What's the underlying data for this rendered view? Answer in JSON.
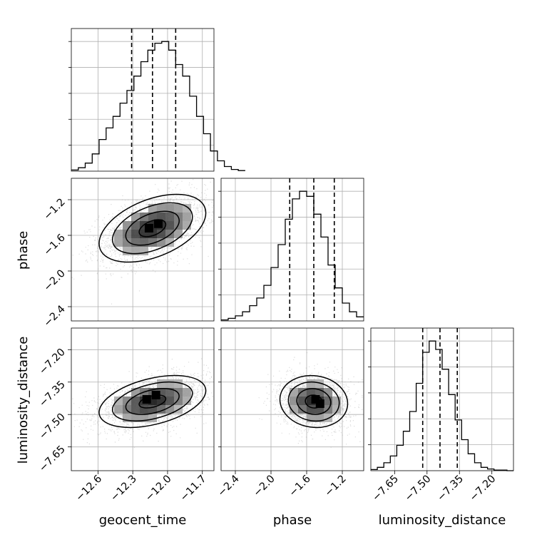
{
  "chart_data": {
    "type": "corner",
    "grid": true,
    "parameters": [
      {
        "name": "geocent_time",
        "label": "geocent_time",
        "lim": [
          -12.83,
          -11.6
        ],
        "ticks": [
          -12.6,
          -12.3,
          -12.0,
          -11.7
        ],
        "tick_labels": [
          "−12.6",
          "−12.3",
          "−12.0",
          "−11.7"
        ],
        "quantiles": [
          -12.31,
          -12.13,
          -11.93
        ],
        "hist": {
          "edges_start": -12.83,
          "bin_width": 0.06,
          "counts": [
            2,
            6,
            14,
            30,
            55,
            75,
            95,
            118,
            140,
            165,
            190,
            210,
            222,
            225,
            210,
            185,
            165,
            130,
            95,
            65,
            35,
            18,
            8,
            3,
            1
          ]
        }
      },
      {
        "name": "phase",
        "label": "phase",
        "lim": [
          -2.56,
          -0.96
        ],
        "ticks": [
          -2.4,
          -2.0,
          -1.6,
          -1.2
        ],
        "tick_labels": [
          "−2.4",
          "−2.0",
          "−1.6",
          "−1.2"
        ],
        "quantiles": [
          -1.79,
          -1.52,
          -1.29
        ],
        "hist": {
          "edges_start": -2.56,
          "bin_width": 0.08,
          "counts": [
            2,
            5,
            10,
            18,
            30,
            45,
            70,
            105,
            150,
            200,
            240,
            255,
            245,
            210,
            165,
            110,
            65,
            35,
            18,
            8
          ]
        }
      },
      {
        "name": "luminosity_distance",
        "label": "luminosity_distance",
        "lim": [
          -7.76,
          -7.1
        ],
        "ticks": [
          -7.65,
          -7.5,
          -7.35,
          -7.2
        ],
        "tick_labels": [
          "−7.65",
          "−7.50",
          "−7.35",
          "−7.20"
        ],
        "quantiles": [
          -7.52,
          -7.44,
          -7.36
        ],
        "hist": {
          "edges_start": -7.76,
          "bin_width": 0.03,
          "counts": [
            2,
            6,
            14,
            26,
            45,
            70,
            105,
            155,
            210,
            230,
            215,
            180,
            135,
            90,
            55,
            30,
            14,
            6,
            3,
            1,
            1,
            0
          ]
        }
      }
    ],
    "pairs": [
      {
        "x": "geocent_time",
        "y": "phase",
        "mean": [
          -12.13,
          -1.52
        ],
        "sigma": [
          0.23,
          0.19
        ],
        "rho": 0.45,
        "peaks": [
          [
            -12.08,
            -1.47
          ],
          [
            -12.16,
            -1.52
          ]
        ]
      },
      {
        "x": "geocent_time",
        "y": "luminosity_distance",
        "mean": [
          -12.13,
          -7.44
        ],
        "sigma": [
          0.23,
          0.06
        ],
        "rho": 0.42,
        "peaks": [
          [
            -12.18,
            -7.43
          ],
          [
            -12.1,
            -7.41
          ]
        ]
      },
      {
        "x": "phase",
        "y": "luminosity_distance",
        "mean": [
          -1.52,
          -7.44
        ],
        "sigma": [
          0.19,
          0.06
        ],
        "rho": -0.08,
        "peaks": [
          [
            -1.45,
            -7.45
          ],
          [
            -1.5,
            -7.43
          ]
        ]
      }
    ],
    "contour_levels": [
      0.5,
      1.0,
      1.5,
      2.0
    ]
  }
}
